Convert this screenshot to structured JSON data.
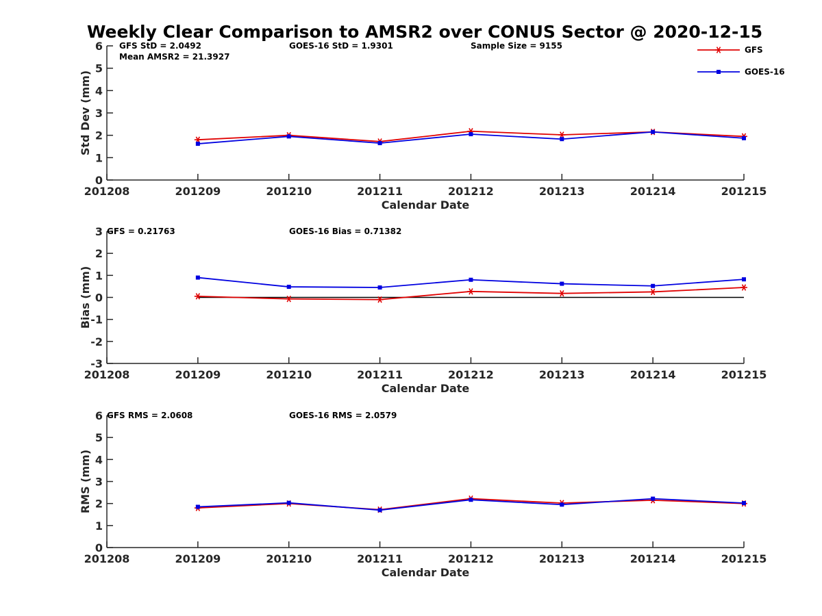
{
  "title": "Weekly Clear Comparison to AMSR2 over CONUS Sector @ 2020-12-15",
  "colors": {
    "GFS": "#e00000",
    "GOES-16": "#0000e0",
    "zero_line": "#000000",
    "axis": "#262626"
  },
  "legend": {
    "placement": "top-right",
    "entries": [
      {
        "label": "GFS",
        "marker": "asterisk"
      },
      {
        "label": "GOES-16",
        "marker": "square"
      }
    ]
  },
  "chart_data": [
    {
      "type": "line",
      "xlabel": "Calendar Date",
      "ylabel": "Std Dev (mm)",
      "ylim": [
        0,
        6
      ],
      "yticks": [
        "0",
        "1",
        "2",
        "3",
        "4",
        "5",
        "6"
      ],
      "categories": [
        "201208",
        "201209",
        "201210",
        "201211",
        "201212",
        "201213",
        "201214",
        "201215"
      ],
      "annotations": [
        "GFS StD = 2.0492",
        "Mean AMSR2 = 21.3927",
        "GOES-16 StD = 1.9301",
        "Sample Size = 9155"
      ],
      "series": [
        {
          "name": "GFS",
          "x": [
            "201209",
            "201210",
            "201211",
            "201212",
            "201213",
            "201214",
            "201215"
          ],
          "values": [
            1.8,
            2.0,
            1.72,
            2.18,
            2.02,
            2.15,
            1.95
          ]
        },
        {
          "name": "GOES-16",
          "x": [
            "201209",
            "201210",
            "201211",
            "201212",
            "201213",
            "201214",
            "201215"
          ],
          "values": [
            1.62,
            1.95,
            1.65,
            2.05,
            1.83,
            2.15,
            1.87
          ]
        }
      ]
    },
    {
      "type": "line",
      "xlabel": "Calendar Date",
      "ylabel": "Bias (mm)",
      "ylim": [
        -3,
        3
      ],
      "yticks": [
        "-3",
        "-2",
        "-1",
        "0",
        "1",
        "2",
        "3"
      ],
      "reference_line": 0,
      "categories": [
        "201208",
        "201209",
        "201210",
        "201211",
        "201212",
        "201213",
        "201214",
        "201215"
      ],
      "annotations": [
        "GFS = 0.21763",
        "GOES-16 Bias  = 0.71382"
      ],
      "series": [
        {
          "name": "GFS",
          "x": [
            "201209",
            "201210",
            "201211",
            "201212",
            "201213",
            "201214",
            "201215"
          ],
          "values": [
            0.05,
            -0.07,
            -0.1,
            0.27,
            0.18,
            0.25,
            0.45
          ]
        },
        {
          "name": "GOES-16",
          "x": [
            "201209",
            "201210",
            "201211",
            "201212",
            "201213",
            "201214",
            "201215"
          ],
          "values": [
            0.9,
            0.48,
            0.45,
            0.8,
            0.62,
            0.52,
            0.82
          ]
        }
      ]
    },
    {
      "type": "line",
      "xlabel": "Calendar Date",
      "ylabel": "RMS (mm)",
      "ylim": [
        0,
        6
      ],
      "yticks": [
        "0",
        "1",
        "2",
        "3",
        "4",
        "5",
        "6"
      ],
      "categories": [
        "201208",
        "201209",
        "201210",
        "201211",
        "201212",
        "201213",
        "201214",
        "201215"
      ],
      "annotations": [
        "GFS RMS = 2.0608",
        "GOES-16 RMS = 2.0579"
      ],
      "series": [
        {
          "name": "GFS",
          "x": [
            "201209",
            "201210",
            "201211",
            "201212",
            "201213",
            "201214",
            "201215"
          ],
          "values": [
            1.8,
            2.0,
            1.72,
            2.22,
            2.02,
            2.15,
            2.0
          ]
        },
        {
          "name": "GOES-16",
          "x": [
            "201209",
            "201210",
            "201211",
            "201212",
            "201213",
            "201214",
            "201215"
          ],
          "values": [
            1.85,
            2.03,
            1.7,
            2.17,
            1.95,
            2.22,
            2.02
          ]
        }
      ]
    }
  ]
}
